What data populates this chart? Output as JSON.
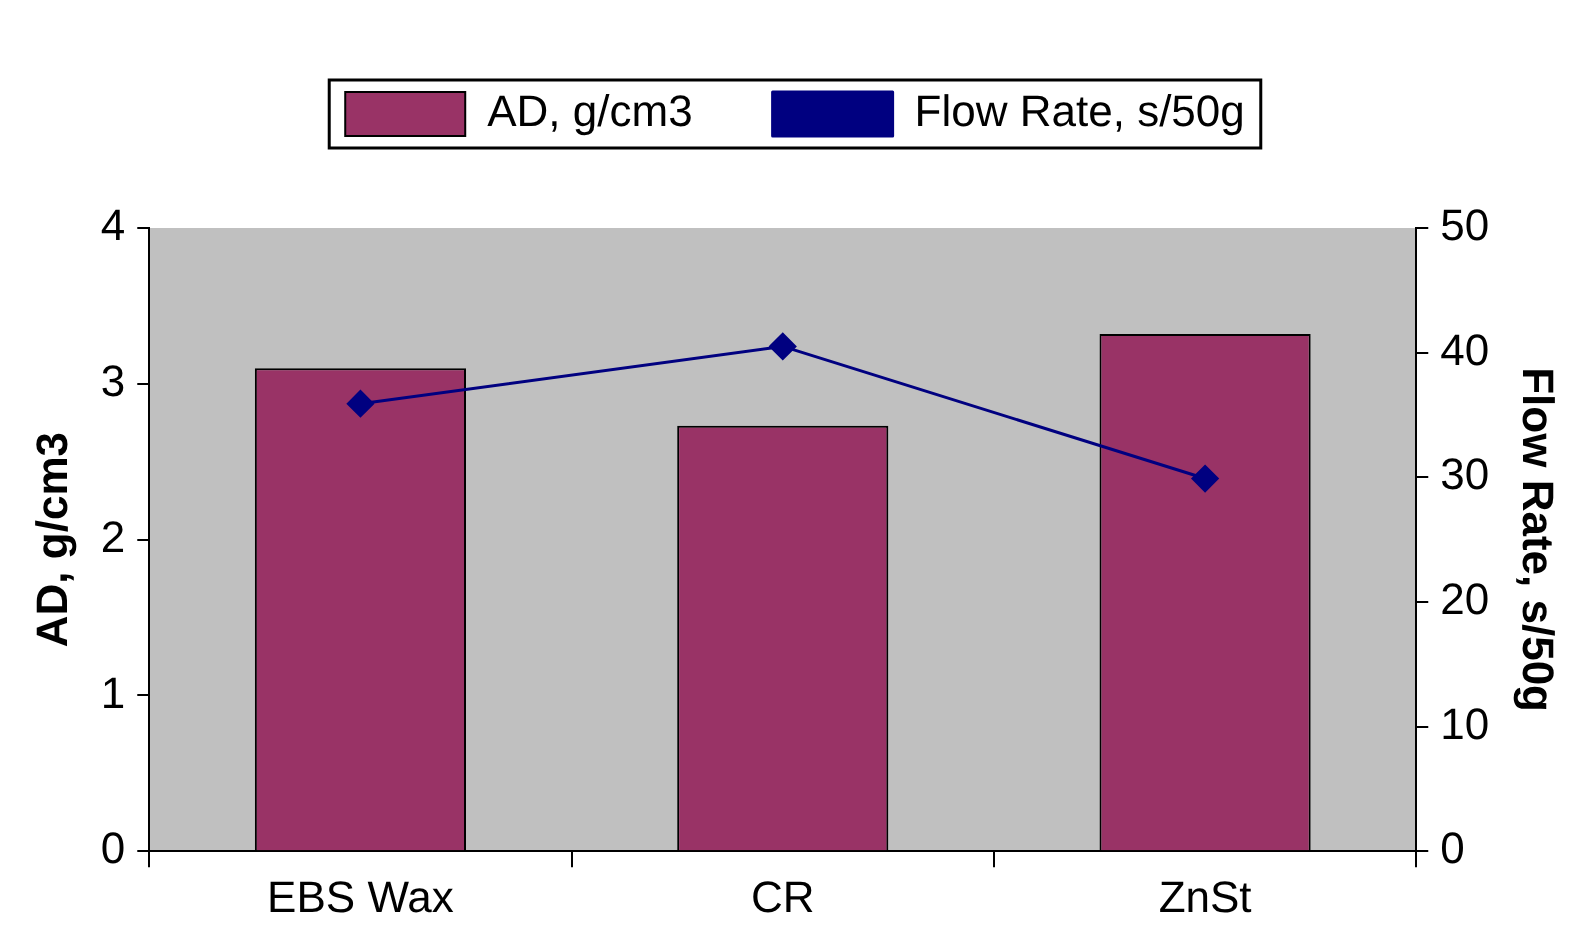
{
  "chart_data": {
    "type": "bar",
    "categories": [
      "EBS Wax",
      "CR",
      "ZnSt"
    ],
    "series": [
      {
        "name": "AD, g/cm3",
        "color": "#993366",
        "values": [
          3.1,
          2.73,
          3.32
        ]
      },
      {
        "name": "Flow Rate, s/50g",
        "type": "line",
        "axis": "y2",
        "color": "#000080",
        "values": [
          35.9,
          40.5,
          29.9
        ],
        "marker": "diamond"
      }
    ],
    "ylabel": "AD, g/cm3",
    "y2label": "Flow Rate, s/50g",
    "ylim": [
      0,
      4
    ],
    "yticks": [
      0,
      1,
      2,
      3,
      4
    ],
    "y2lim": [
      0,
      50
    ],
    "y2ticks": [
      0,
      10,
      20,
      30,
      40,
      50
    ],
    "legend": "top",
    "grid": false
  }
}
